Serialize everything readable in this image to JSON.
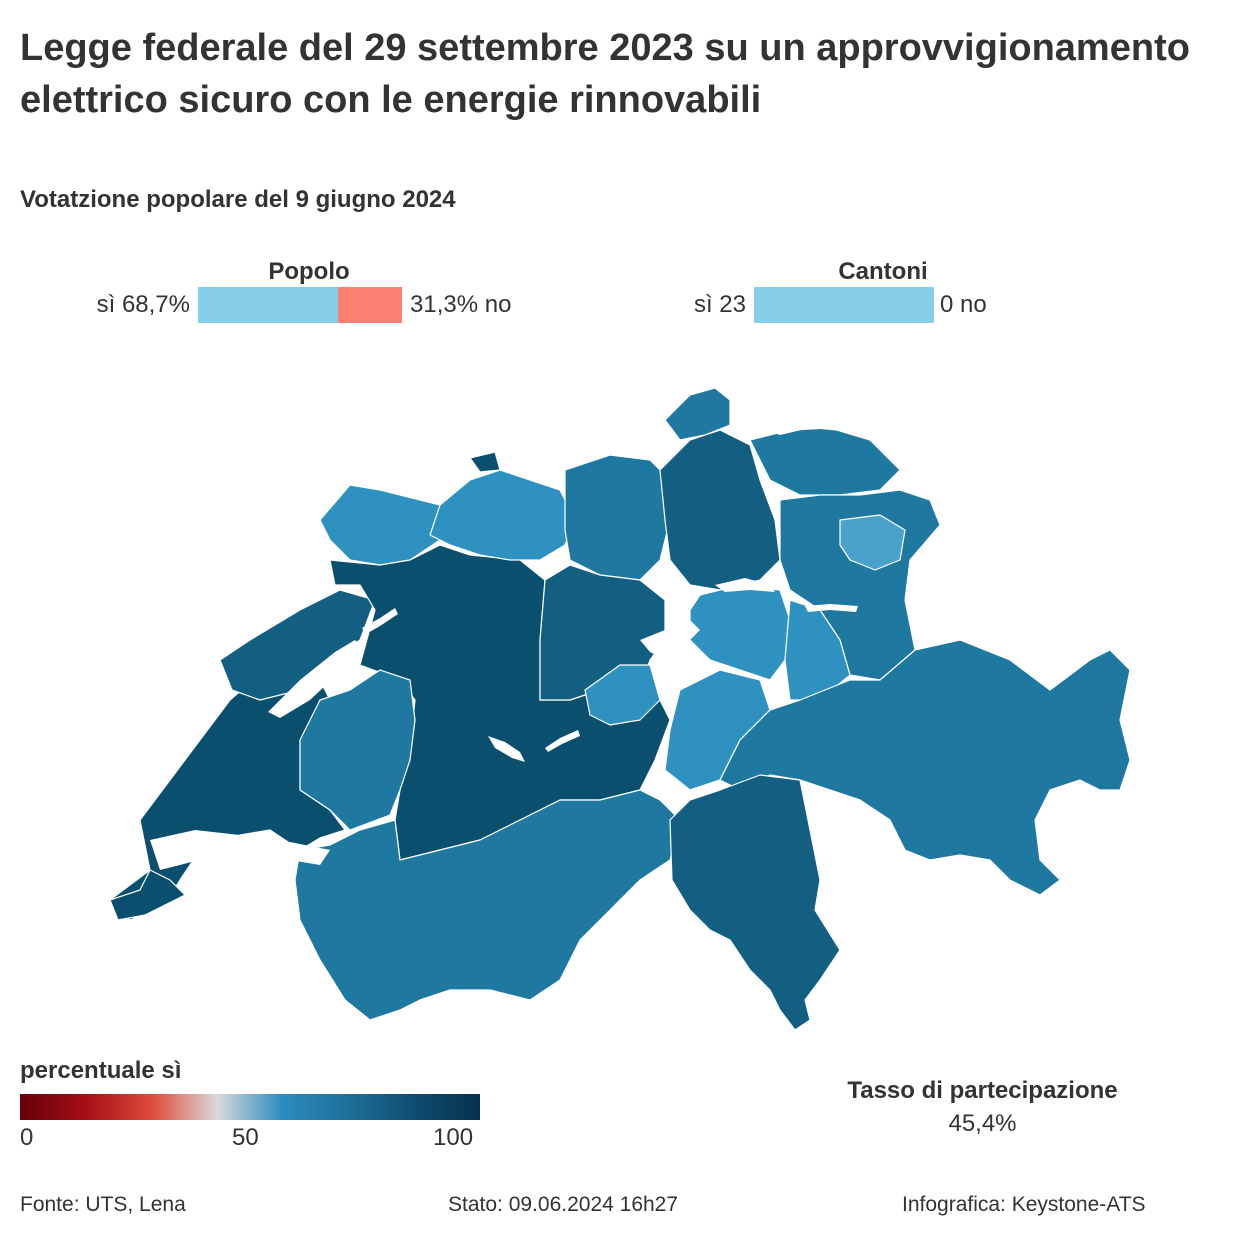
{
  "title": "Legge federale del 29 settembre 2023 su un approvvigionamento elettrico sicuro con le energie rinnovabili",
  "subtitle": "Votatzione popolare del 9 giugno 2024",
  "popolo": {
    "label": "Popolo",
    "yes_text": "sì 68,7%",
    "no_text": "31,3% no",
    "yes_pct": 68.7,
    "no_pct": 31.3,
    "yes_color": "#87CEEB",
    "no_color": "#FA8072"
  },
  "cantoni": {
    "label": "Cantoni",
    "yes_text": "sì 23",
    "no_text": "0 no",
    "yes_count": 23,
    "no_count": 0,
    "yes_color": "#87CEEB"
  },
  "legend": {
    "title": "percentuale sì",
    "ticks": [
      "0",
      "50",
      "100"
    ],
    "colors": [
      "#67000d",
      "#a50f15",
      "#de4a3a",
      "#d9d9d9",
      "#2b8cbe",
      "#1f6f99",
      "#0e4d70",
      "#08304d"
    ]
  },
  "turnout": {
    "label": "Tasso di partecipazione",
    "value": "45,4%"
  },
  "footer": {
    "source": "Fonte: UTS, Lena",
    "status": "Stato: 09.06.2024 16h27",
    "credit": "Infografica: Keystone-ATS"
  },
  "map_colors": {
    "dark": "#0b4f6e",
    "mid_dark": "#135f82",
    "mid": "#1f78a0",
    "light": "#2f91bf",
    "lighter": "#4aa2cc",
    "lake": "#ffffff",
    "border": "#ffffff"
  }
}
